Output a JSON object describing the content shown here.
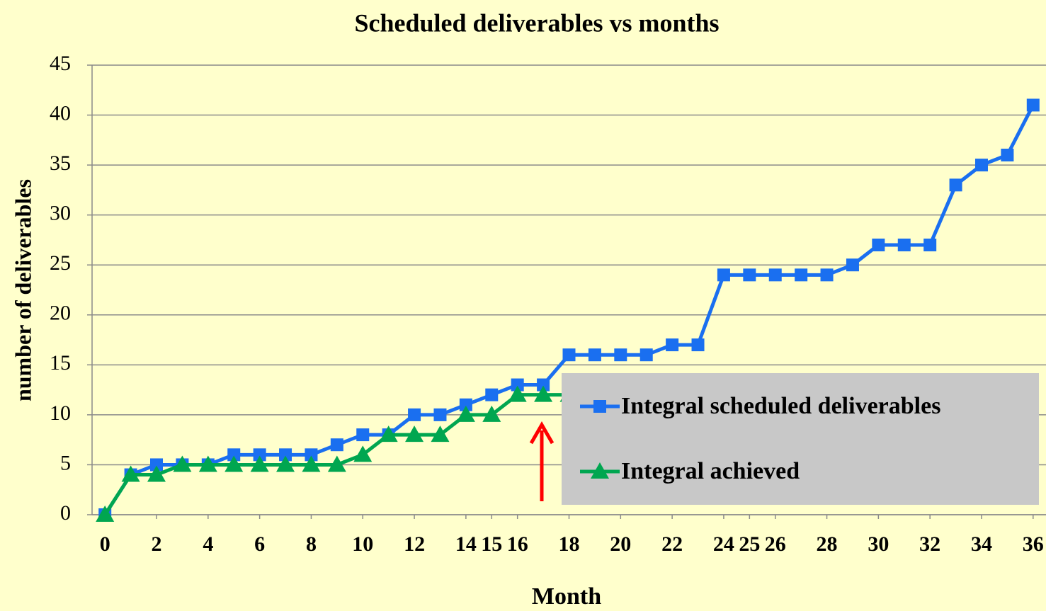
{
  "chart_data": {
    "type": "line",
    "title": "Scheduled deliverables vs months",
    "x_label": "Month",
    "y_label": "number of deliverables",
    "x": [
      0,
      1,
      2,
      3,
      4,
      5,
      6,
      7,
      8,
      9,
      10,
      11,
      12,
      13,
      14,
      15,
      16,
      17,
      18,
      19,
      20,
      21,
      22,
      23,
      24,
      25,
      26,
      27,
      28,
      29,
      30,
      31,
      32,
      33,
      34,
      35,
      36
    ],
    "series": [
      {
        "name": "Integral scheduled deliverables",
        "color": "#1a6ff0",
        "marker": "square",
        "values": [
          0,
          4,
          5,
          5,
          5,
          6,
          6,
          6,
          6,
          7,
          8,
          8,
          10,
          10,
          11,
          12,
          13,
          13,
          16,
          16,
          16,
          16,
          17,
          17,
          24,
          24,
          24,
          24,
          24,
          25,
          27,
          27,
          27,
          33,
          35,
          36,
          41
        ]
      },
      {
        "name": "Integral achieved",
        "color": "#00a650",
        "marker": "triangle",
        "values": [
          0,
          4,
          4,
          5,
          5,
          5,
          5,
          5,
          5,
          5,
          6,
          8,
          8,
          8,
          10,
          10,
          12,
          12,
          12,
          null,
          null,
          null,
          null,
          null,
          null,
          null,
          null,
          null,
          null,
          null,
          null,
          null,
          null,
          null,
          null,
          null,
          null
        ]
      }
    ],
    "xlim": [
      -0.5,
      36.5
    ],
    "xticks": [
      0,
      2,
      4,
      6,
      8,
      10,
      12,
      14,
      15,
      16,
      18,
      20,
      22,
      24,
      25,
      26,
      28,
      30,
      32,
      34,
      36
    ],
    "ylim": [
      0,
      45
    ],
    "yticks": [
      0,
      5,
      10,
      15,
      20,
      25,
      30,
      35,
      40,
      45
    ],
    "grid": true,
    "legend": "lower right"
  }
}
